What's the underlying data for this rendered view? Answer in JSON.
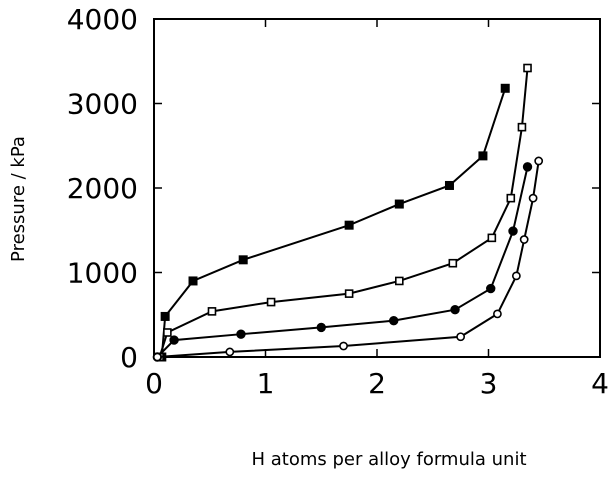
{
  "chart_data": {
    "type": "line",
    "title": "",
    "xlabel": "H atoms per alloy formula unit",
    "ylabel": "Pressure / kPa",
    "xlim": [
      0,
      4
    ],
    "ylim": [
      0,
      4000
    ],
    "x_ticks": [
      "0",
      "1",
      "2",
      "3",
      "4"
    ],
    "y_ticks": [
      "0",
      "1000",
      "2000",
      "3000",
      "4000"
    ],
    "grid": false,
    "legend": "none",
    "series": [
      {
        "marker": "filled-square",
        "points": [
          [
            0.07,
            0
          ],
          [
            0.1,
            480
          ],
          [
            0.35,
            900
          ],
          [
            0.8,
            1150
          ],
          [
            1.75,
            1560
          ],
          [
            2.2,
            1810
          ],
          [
            2.65,
            2030
          ],
          [
            2.95,
            2380
          ],
          [
            3.15,
            3180
          ]
        ]
      },
      {
        "marker": "open-square",
        "points": [
          [
            0.05,
            0
          ],
          [
            0.12,
            290
          ],
          [
            0.52,
            540
          ],
          [
            1.05,
            650
          ],
          [
            1.75,
            750
          ],
          [
            2.2,
            900
          ],
          [
            2.68,
            1110
          ],
          [
            3.03,
            1410
          ],
          [
            3.2,
            1880
          ],
          [
            3.3,
            2720
          ],
          [
            3.35,
            3420
          ]
        ]
      },
      {
        "marker": "filled-circle",
        "points": [
          [
            0.03,
            0
          ],
          [
            0.18,
            200
          ],
          [
            0.78,
            270
          ],
          [
            1.5,
            350
          ],
          [
            2.15,
            430
          ],
          [
            2.7,
            560
          ],
          [
            3.02,
            810
          ],
          [
            3.22,
            1490
          ],
          [
            3.35,
            2250
          ]
        ]
      },
      {
        "marker": "open-circle",
        "points": [
          [
            0.03,
            0
          ],
          [
            0.68,
            60
          ],
          [
            1.7,
            130
          ],
          [
            2.75,
            240
          ],
          [
            3.08,
            510
          ],
          [
            3.25,
            960
          ],
          [
            3.32,
            1390
          ],
          [
            3.4,
            1880
          ],
          [
            3.45,
            2320
          ]
        ]
      }
    ]
  }
}
